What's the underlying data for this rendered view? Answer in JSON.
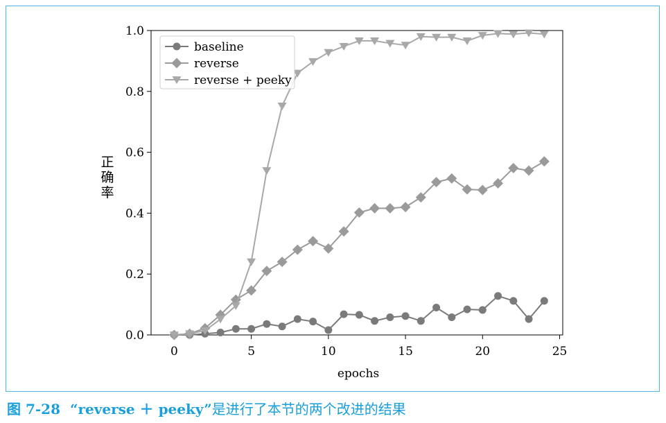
{
  "figure": {
    "number": "图 7-28",
    "caption_quoted": "“reverse ＋ peeky”",
    "caption_rest": "是进行了本节的两个改进的结果"
  },
  "chart_data": {
    "type": "line",
    "xlabel": "epochs",
    "ylabel": "正确率",
    "xlim": [
      -1.5,
      25.2
    ],
    "ylim": [
      0.0,
      1.0
    ],
    "xticks": [
      0,
      5,
      10,
      15,
      20,
      25
    ],
    "yticks": [
      0.0,
      0.2,
      0.4,
      0.6,
      0.8,
      1.0
    ],
    "ytick_labels": [
      "0.0",
      "0.2",
      "0.4",
      "0.6",
      "0.8",
      "1.0"
    ],
    "grid": false,
    "legend_position": "top-left",
    "x": [
      0,
      1,
      2,
      3,
      4,
      5,
      6,
      7,
      8,
      9,
      10,
      11,
      12,
      13,
      14,
      15,
      16,
      17,
      18,
      19,
      20,
      21,
      22,
      23,
      24
    ],
    "series": [
      {
        "name": "baseline",
        "marker": "circle",
        "color": "#7a7a7a",
        "values": [
          0.0,
          0.0,
          0.004,
          0.008,
          0.02,
          0.02,
          0.036,
          0.028,
          0.052,
          0.044,
          0.016,
          0.068,
          0.066,
          0.046,
          0.058,
          0.062,
          0.046,
          0.09,
          0.058,
          0.084,
          0.082,
          0.128,
          0.112,
          0.052,
          0.112
        ]
      },
      {
        "name": "reverse",
        "marker": "diamond",
        "color": "#9a9a9a",
        "values": [
          0.0,
          0.004,
          0.022,
          0.066,
          0.116,
          0.146,
          0.21,
          0.24,
          0.28,
          0.308,
          0.284,
          0.34,
          0.402,
          0.416,
          0.416,
          0.42,
          0.452,
          0.502,
          0.514,
          0.478,
          0.476,
          0.498,
          0.548,
          0.54,
          0.57
        ]
      },
      {
        "name": "reverse + peeky",
        "marker": "triangle-down",
        "color": "#a8a8a8",
        "values": [
          0.0,
          0.004,
          0.014,
          0.052,
          0.096,
          0.24,
          0.54,
          0.752,
          0.86,
          0.898,
          0.928,
          0.948,
          0.966,
          0.966,
          0.958,
          0.952,
          0.98,
          0.978,
          0.978,
          0.966,
          0.984,
          0.99,
          0.988,
          0.992,
          0.988
        ]
      }
    ]
  }
}
